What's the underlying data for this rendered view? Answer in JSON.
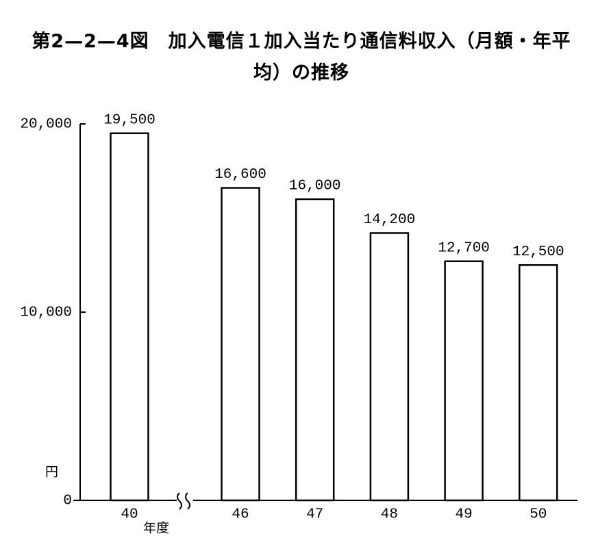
{
  "chart_data": {
    "type": "bar",
    "title": "第2—2—4図　加入電信１加入当たり通信料収入（月額・年平均）の推移",
    "y_unit_label": "円",
    "x_label": "年度",
    "categories": [
      "40",
      "46",
      "47",
      "48",
      "49",
      "50"
    ],
    "values": [
      19500,
      16600,
      16000,
      14200,
      12700,
      12500
    ],
    "value_labels": [
      "19,500",
      "16,600",
      "16,000",
      "14,200",
      "12,700",
      "12,500"
    ],
    "color": "#ffffff",
    "ylim": [
      0,
      20000
    ],
    "yticks": [
      0,
      {
        "value": 10000,
        "label": "10,000"
      },
      {
        "value": 20000,
        "label": "20,000"
      }
    ],
    "grid": false
  }
}
